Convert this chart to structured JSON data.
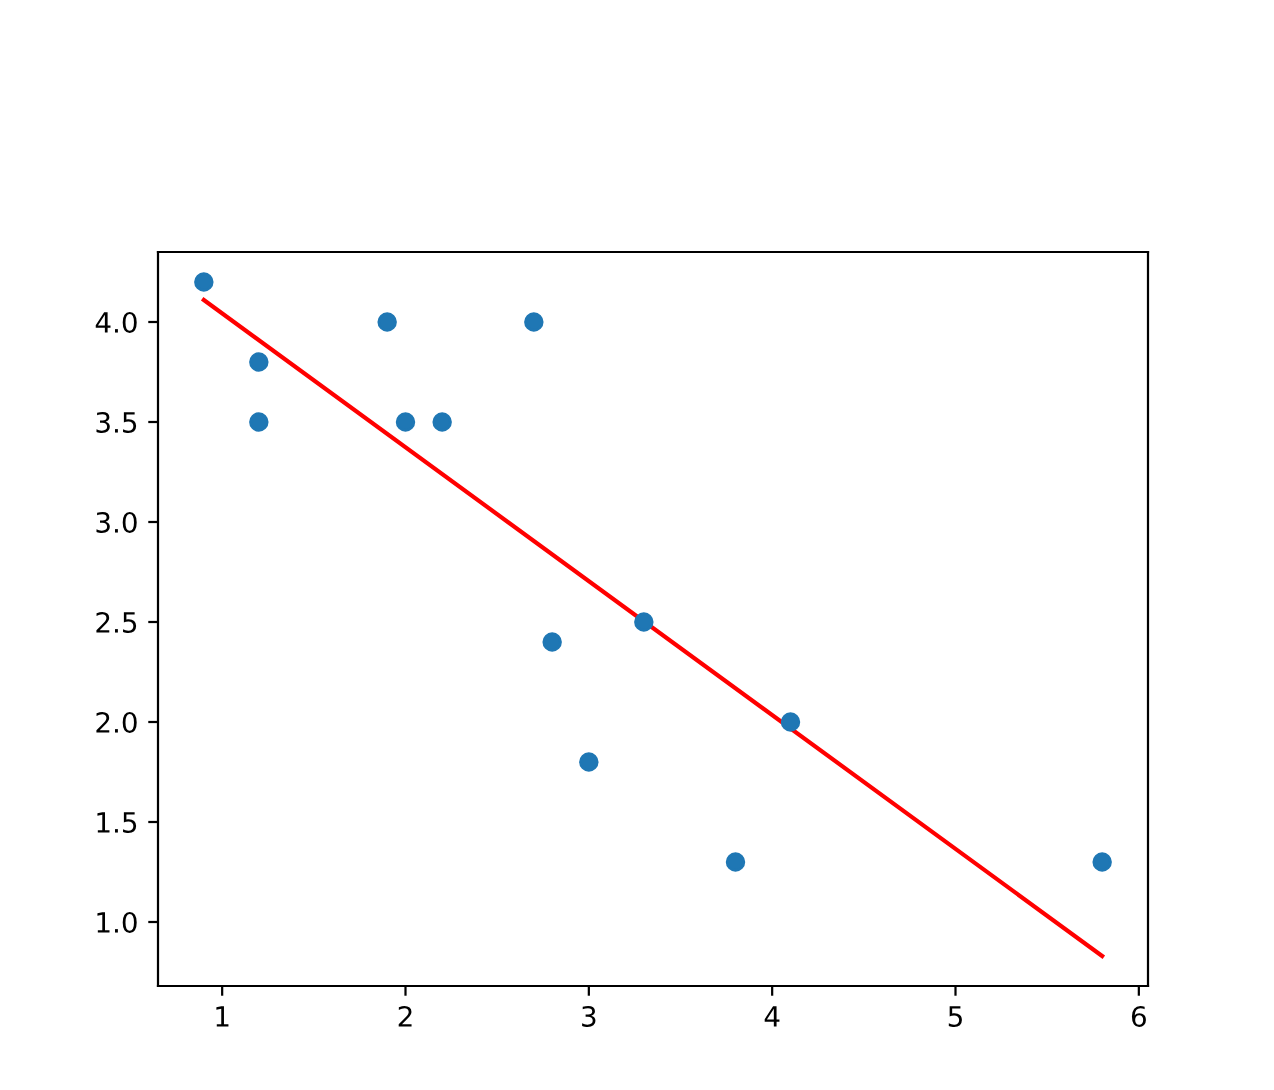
{
  "chart_data": {
    "type": "scatter",
    "series": [
      {
        "color": "#1f77b4",
        "marker": "circle",
        "x": [
          0.9,
          1.2,
          1.2,
          1.9,
          2.0,
          2.2,
          2.7,
          2.8,
          3.0,
          3.3,
          3.8,
          4.1,
          5.8
        ],
        "values": [
          4.2,
          3.8,
          3.5,
          4.0,
          3.5,
          3.5,
          4.0,
          2.4,
          1.8,
          2.5,
          1.3,
          2.0,
          1.3
        ]
      },
      {
        "type": "line",
        "marker": "none",
        "color": "#ff0000",
        "x": [
          0.9,
          5.8
        ],
        "values": [
          4.11,
          0.83
        ]
      }
    ],
    "xlim": [
      0.65,
      6.05
    ],
    "ylim": [
      0.68,
      4.35
    ],
    "xticks": [
      1,
      2,
      3,
      4,
      5,
      6
    ],
    "yticks": [
      {
        "value": 1.0,
        "label": "1.0"
      },
      {
        "value": 1.5,
        "label": "1.5"
      },
      {
        "value": 2.0,
        "label": "2.0"
      },
      {
        "value": 2.5,
        "label": "2.5"
      },
      {
        "value": 3.0,
        "label": "3.0"
      },
      {
        "value": 3.5,
        "label": "3.5"
      },
      {
        "value": 4.0,
        "label": "4.0"
      }
    ],
    "grid": false,
    "legend": false
  }
}
